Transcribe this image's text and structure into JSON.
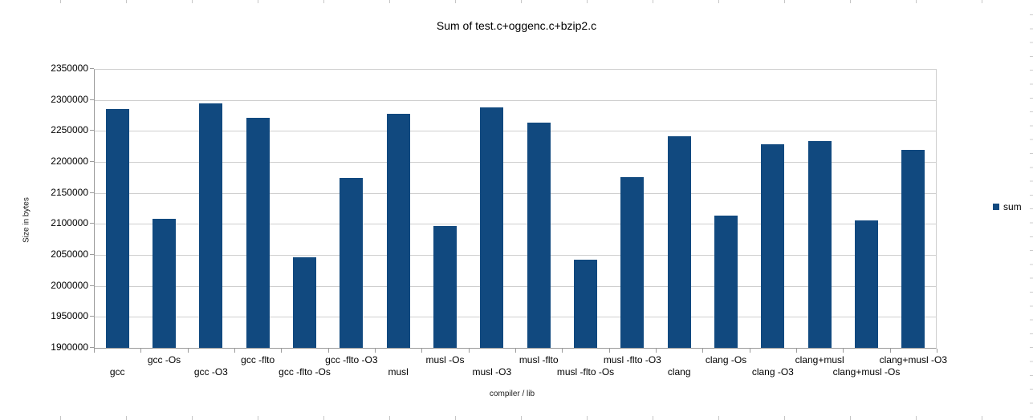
{
  "chart_data": {
    "type": "bar",
    "title": "Sum of test.c+oggenc.c+bzip2.c",
    "xlabel": "compiler / lib",
    "ylabel": "Size in bytes",
    "categories": [
      "gcc",
      "gcc -Os",
      "gcc -O3",
      "gcc -flto",
      "gcc -flto -Os",
      "gcc -flto -O3",
      "musl",
      "musl -Os",
      "musl -O3",
      "musl -flto",
      "musl -flto -Os",
      "musl -flto -O3",
      "clang",
      "clang -Os",
      "clang -O3",
      "clang+musl",
      "clang+musl -Os",
      "clang+musl -O3"
    ],
    "series": [
      {
        "name": "sum",
        "values": [
          2285000,
          2108000,
          2295000,
          2271000,
          2046000,
          2174000,
          2277000,
          2096000,
          2288000,
          2263000,
          2042000,
          2175000,
          2242000,
          2114000,
          2229000,
          2233000,
          2106000,
          2220000
        ]
      }
    ],
    "ylim": [
      1900000,
      2350000
    ],
    "yticks": [
      1900000,
      1950000,
      2000000,
      2050000,
      2100000,
      2150000,
      2200000,
      2250000,
      2300000,
      2350000
    ],
    "grid": true,
    "legend_position": "right"
  },
  "colors": {
    "bar": "#11497f",
    "gridline": "#cfcfcf",
    "axis": "#9b9b9b",
    "text": "#000000"
  }
}
